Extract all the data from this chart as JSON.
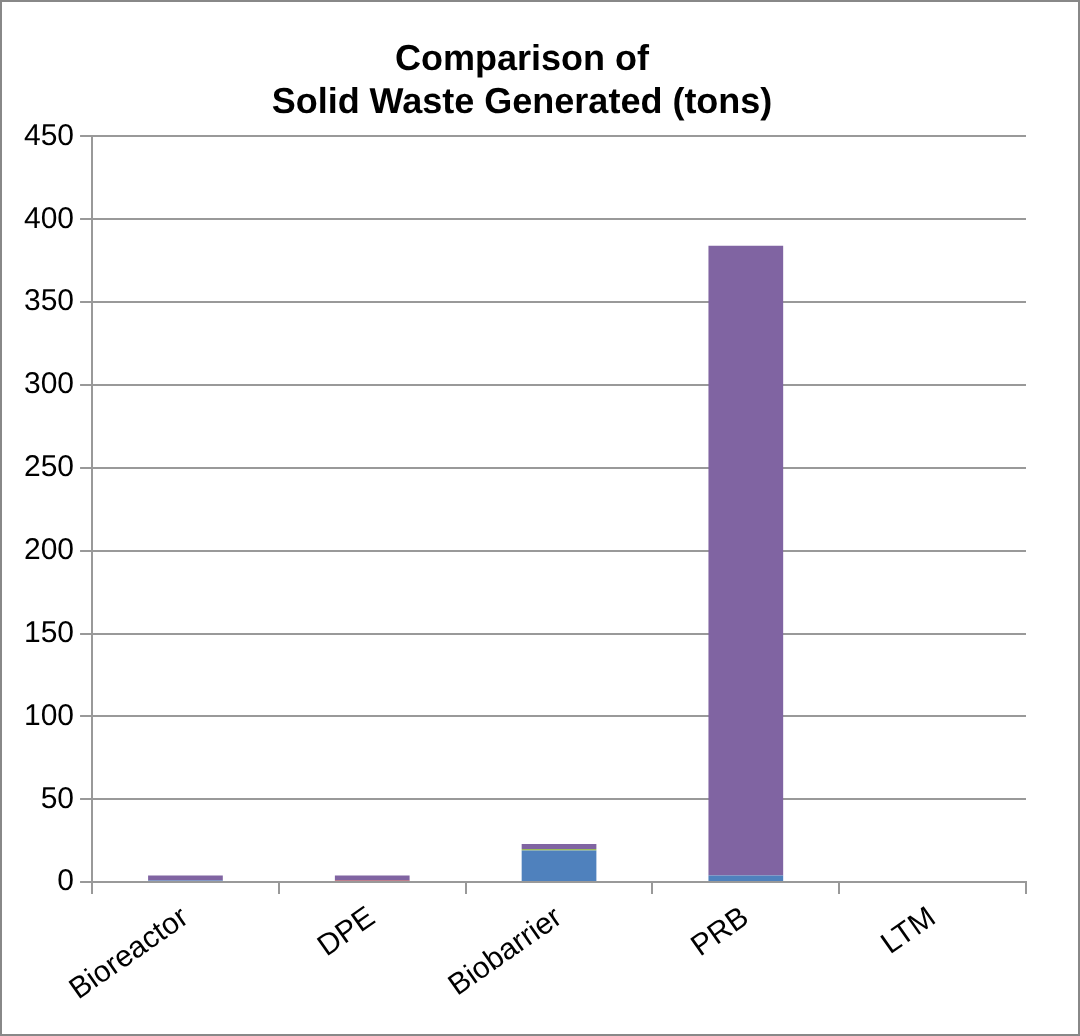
{
  "chart_data": {
    "type": "bar",
    "title": "Comparison of\nSolid Waste Generated (tons)",
    "categories": [
      "Bioreactor",
      "DPE",
      "Biobarrier",
      "PRB",
      "LTM"
    ],
    "stacked": true,
    "series": [
      {
        "color": "#4f81bd",
        "values": [
          1,
          0,
          19,
          4,
          0
        ]
      },
      {
        "color": "#9bbb59",
        "values": [
          0,
          0,
          1,
          0,
          0
        ]
      },
      {
        "color": "#c0504d",
        "values": [
          0,
          1,
          0,
          0,
          0
        ]
      },
      {
        "color": "#8064a2",
        "values": [
          3,
          3,
          3,
          380,
          0
        ]
      }
    ],
    "ylim": [
      0,
      450
    ],
    "yticks": [
      0,
      50,
      100,
      150,
      200,
      250,
      300,
      350,
      400,
      450
    ],
    "grid": "y",
    "legend": false
  }
}
